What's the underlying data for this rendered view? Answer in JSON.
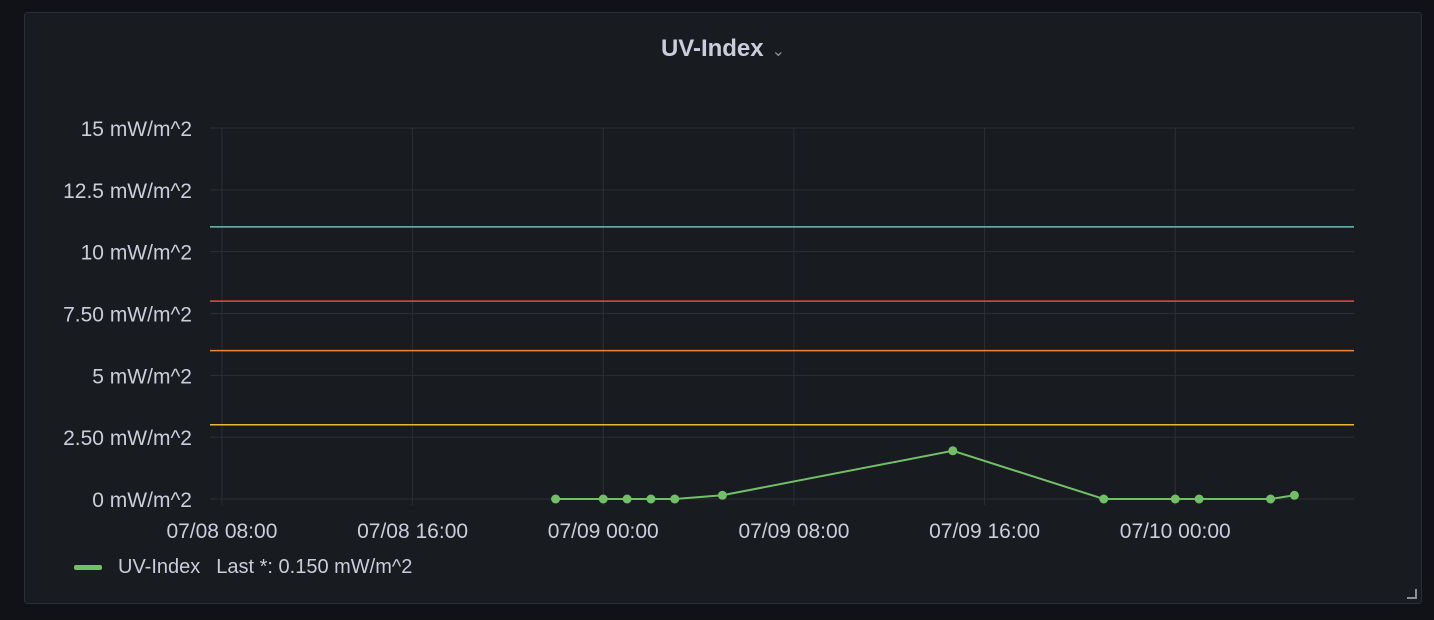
{
  "panel": {
    "title": "UV-Index",
    "menu_icon": "chevron-down-icon"
  },
  "legend": {
    "series_name": "UV-Index",
    "stat": "Last *: 0.150 mW/m^2",
    "color": "#73bf69"
  },
  "chart_data": {
    "type": "line",
    "title": "UV-Index",
    "xlabel": "",
    "ylabel": "",
    "unit": "mW/m^2",
    "ylim": [
      0,
      15
    ],
    "yticks": [
      "0 mW/m^2",
      "2.50 mW/m^2",
      "5 mW/m^2",
      "7.50 mW/m^2",
      "10 mW/m^2",
      "12.5 mW/m^2",
      "15 mW/m^2"
    ],
    "ytick_values": [
      0,
      2.5,
      5,
      7.5,
      10,
      12.5,
      15
    ],
    "xlim": [
      "07/08 07:30",
      "07/10 07:30"
    ],
    "xticks": [
      "07/08 08:00",
      "07/08 16:00",
      "07/09 00:00",
      "07/09 08:00",
      "07/09 16:00",
      "07/10 00:00"
    ],
    "grid": true,
    "legend_position": "bottom-left",
    "series": [
      {
        "name": "UV-Index",
        "color": "#73bf69",
        "x": [
          "07/08 22:00",
          "07/09 00:00",
          "07/09 01:00",
          "07/09 02:00",
          "07/09 03:00",
          "07/09 05:00",
          "07/09 14:40",
          "07/09 21:00",
          "07/10 00:00",
          "07/10 01:00",
          "07/10 04:00",
          "07/10 05:00"
        ],
        "y": [
          0,
          0,
          0,
          0,
          0,
          0.15,
          1.95,
          0,
          0,
          0,
          0,
          0.15
        ]
      }
    ],
    "thresholds": [
      {
        "value": 11,
        "color": "#6fb8c0"
      },
      {
        "value": 8,
        "color": "#e24d42"
      },
      {
        "value": 6,
        "color": "#ef843c"
      },
      {
        "value": 3,
        "color": "#eab839"
      }
    ]
  }
}
